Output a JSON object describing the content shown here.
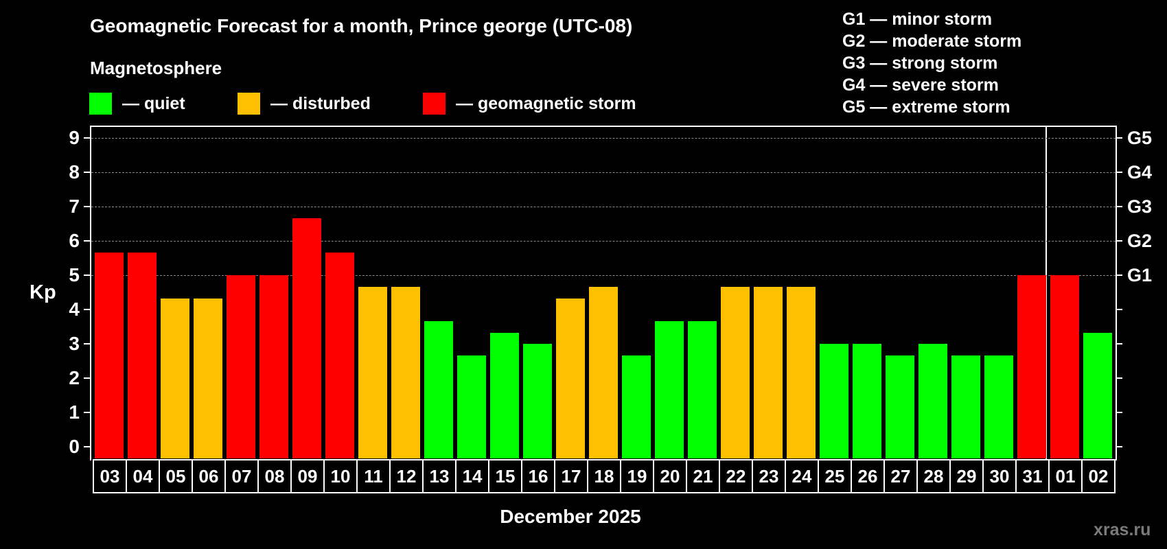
{
  "title": "Geomagnetic Forecast for a month, Prince george (UTC-08)",
  "subtitle": "Magnetosphere",
  "legend": [
    {
      "label": "— quiet",
      "color": "#00ff00",
      "x": 130
    },
    {
      "label": "— disturbed",
      "color": "#ffc000",
      "x": 346
    },
    {
      "label": "— geomagnetic storm",
      "color": "#ff0000",
      "x": 616
    }
  ],
  "g_legend": [
    "G1 — minor storm",
    "G2 — moderate storm",
    "G3 — strong storm",
    "G4 — severe storm",
    "G5 — extreme storm"
  ],
  "y_axis": {
    "label": "Kp",
    "ticks": [
      "0",
      "1",
      "2",
      "3",
      "4",
      "5",
      "6",
      "7",
      "8",
      "9"
    ],
    "right_ticks": [
      {
        "value": 5,
        "label": "G1"
      },
      {
        "value": 6,
        "label": "G2"
      },
      {
        "value": 7,
        "label": "G3"
      },
      {
        "value": 8,
        "label": "G4"
      },
      {
        "value": 9,
        "label": "G5"
      }
    ]
  },
  "x_axis": {
    "title": "December 2025"
  },
  "watermark": "xras.ru",
  "colors": {
    "quiet": "#00ff00",
    "disturbed": "#ffc000",
    "storm": "#ff0000",
    "grid": "#8a8a8a"
  },
  "chart_data": {
    "type": "bar",
    "title": "Geomagnetic Forecast for a month, Prince george (UTC-08)",
    "xlabel": "December 2025",
    "ylabel": "Kp",
    "ylim": [
      0,
      9
    ],
    "grid": {
      "y": true,
      "style": "dashed",
      "levels": [
        5,
        6,
        7,
        8,
        9
      ]
    },
    "month_boundary_after": "31",
    "categories": [
      "03",
      "04",
      "05",
      "06",
      "07",
      "08",
      "09",
      "10",
      "11",
      "12",
      "13",
      "14",
      "15",
      "16",
      "17",
      "18",
      "19",
      "20",
      "21",
      "22",
      "23",
      "24",
      "25",
      "26",
      "27",
      "28",
      "29",
      "30",
      "31",
      "01",
      "02"
    ],
    "values": [
      5.67,
      5.67,
      4.33,
      4.33,
      5.0,
      5.0,
      6.67,
      5.67,
      4.67,
      4.67,
      3.67,
      2.67,
      3.33,
      3.0,
      4.33,
      4.67,
      2.67,
      3.67,
      3.67,
      4.67,
      4.67,
      4.67,
      3.0,
      3.0,
      2.67,
      3.0,
      2.67,
      2.67,
      5.0,
      5.0,
      3.33
    ],
    "status": [
      "storm",
      "storm",
      "disturbed",
      "disturbed",
      "storm",
      "storm",
      "storm",
      "storm",
      "disturbed",
      "disturbed",
      "quiet",
      "quiet",
      "quiet",
      "quiet",
      "disturbed",
      "disturbed",
      "quiet",
      "quiet",
      "quiet",
      "disturbed",
      "disturbed",
      "disturbed",
      "quiet",
      "quiet",
      "quiet",
      "quiet",
      "quiet",
      "quiet",
      "storm",
      "storm",
      "quiet"
    ],
    "legend": [
      "quiet",
      "disturbed",
      "geomagnetic storm"
    ],
    "right_axis_labels": {
      "5": "G1",
      "6": "G2",
      "7": "G3",
      "8": "G4",
      "9": "G5"
    }
  }
}
